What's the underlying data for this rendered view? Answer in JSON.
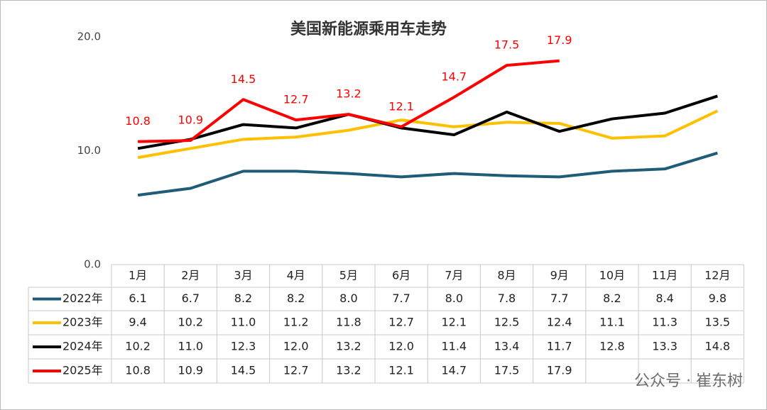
{
  "chart_data": {
    "type": "line",
    "title": "美国新能源乘用车走势",
    "categories": [
      "1月",
      "2月",
      "3月",
      "4月",
      "5月",
      "6月",
      "7月",
      "8月",
      "9月",
      "10月",
      "11月",
      "12月"
    ],
    "ylim": [
      0,
      20
    ],
    "yticks": [
      {
        "value": 0,
        "label": "0.0"
      },
      {
        "value": 10,
        "label": "10.0"
      },
      {
        "value": 20,
        "label": "20.0"
      }
    ],
    "series": [
      {
        "name": "2022年",
        "color": "#1f5c78",
        "values": [
          6.1,
          6.7,
          8.2,
          8.2,
          8.0,
          7.7,
          8.0,
          7.8,
          7.7,
          8.2,
          8.4,
          9.8
        ],
        "value_labels": [
          "6.1",
          "6.7",
          "8.2",
          "8.2",
          "8.0",
          "7.7",
          "8.0",
          "7.8",
          "7.7",
          "8.2",
          "8.4",
          "9.8"
        ]
      },
      {
        "name": "2023年",
        "color": "#ffc000",
        "values": [
          9.4,
          10.2,
          11.0,
          11.2,
          11.8,
          12.7,
          12.1,
          12.5,
          12.4,
          11.1,
          11.3,
          13.5
        ],
        "value_labels": [
          "9.4",
          "10.2",
          "11.0",
          "11.2",
          "11.8",
          "12.7",
          "12.1",
          "12.5",
          "12.4",
          "11.1",
          "11.3",
          "13.5"
        ]
      },
      {
        "name": "2024年",
        "color": "#000000",
        "values": [
          10.2,
          11.0,
          12.3,
          12.0,
          13.2,
          12.0,
          11.4,
          13.4,
          11.7,
          12.8,
          13.3,
          14.8
        ],
        "value_labels": [
          "10.2",
          "11.0",
          "12.3",
          "12.0",
          "13.2",
          "12.0",
          "11.4",
          "13.4",
          "11.7",
          "12.8",
          "13.3",
          "14.8"
        ]
      },
      {
        "name": "2025年",
        "color": "#ff0000",
        "values": [
          10.8,
          10.9,
          14.5,
          12.7,
          13.2,
          12.1,
          14.7,
          17.5,
          17.9,
          null,
          null,
          null
        ],
        "value_labels": [
          "10.8",
          "10.9",
          "14.5",
          "12.7",
          "13.2",
          "12.1",
          "14.7",
          "17.5",
          "17.9",
          null,
          null,
          null
        ],
        "data_labels": true
      }
    ],
    "watermark": "公众号 · 崔东树"
  }
}
